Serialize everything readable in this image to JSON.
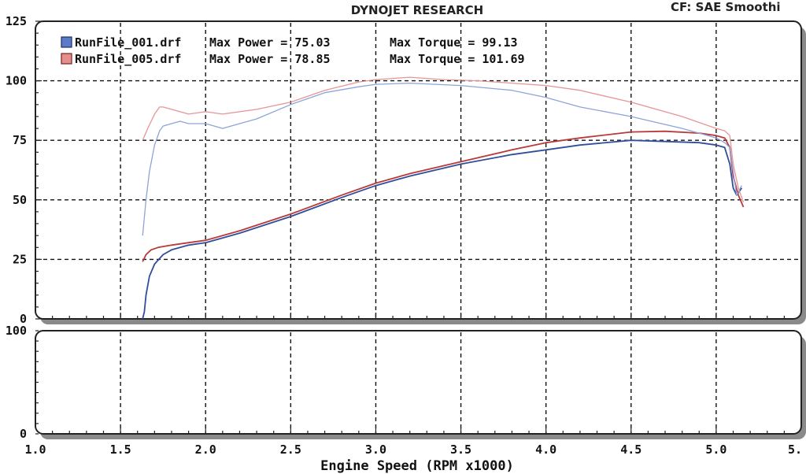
{
  "header": {
    "title": "DYNOJET RESEARCH",
    "cf_text": "CF: SAE  Smoothi"
  },
  "chart_data": [
    {
      "type": "line",
      "xlabel": "Engine Speed (RPM x1000)",
      "xlim": [
        1.0,
        5.5
      ],
      "ylim": [
        0,
        125
      ],
      "x_ticks": [
        "1.0",
        "1.5",
        "2.0",
        "2.5",
        "3.0",
        "3.5",
        "4.0",
        "4.5",
        "5.0",
        "5."
      ],
      "y_ticks": [
        "0",
        "25",
        "50",
        "75",
        "100",
        "125"
      ],
      "grid": true,
      "legend_position": "top-left",
      "legend": [
        {
          "file": "RunFile_001.drf",
          "power_text": "Max Power = 75.03",
          "torque_text": "Max Torque = 99.13",
          "color": "#3b5aa8"
        },
        {
          "file": "RunFile_005.drf",
          "power_text": "Max Power = 78.85",
          "torque_text": "Max Torque = 101.69",
          "color": "#c84848"
        }
      ],
      "series": [
        {
          "kind": "power",
          "color": "#2f4f9a",
          "x": [
            1.63,
            1.64,
            1.65,
            1.67,
            1.7,
            1.75,
            1.8,
            1.9,
            2.0,
            2.2,
            2.5,
            2.8,
            3.0,
            3.2,
            3.5,
            3.8,
            4.0,
            4.2,
            4.5,
            4.7,
            4.9,
            5.0,
            5.05,
            5.08,
            5.1,
            5.12,
            5.15
          ],
          "y": [
            0,
            3,
            10,
            18,
            23,
            27,
            29,
            31,
            32,
            36,
            43,
            51,
            56,
            60,
            65,
            69,
            71,
            73,
            75,
            74.5,
            74,
            73,
            72,
            65,
            55,
            52,
            55
          ]
        },
        {
          "kind": "power",
          "color": "#b83a3a",
          "x": [
            1.63,
            1.65,
            1.68,
            1.72,
            1.8,
            1.9,
            2.0,
            2.2,
            2.5,
            2.8,
            3.0,
            3.2,
            3.5,
            3.8,
            4.0,
            4.2,
            4.5,
            4.7,
            4.9,
            5.0,
            5.05,
            5.08,
            5.1,
            5.13,
            5.16
          ],
          "y": [
            24,
            27,
            29,
            30,
            31,
            32,
            33,
            37,
            44,
            52,
            57,
            61,
            66,
            71,
            74,
            76,
            78.5,
            78.8,
            78,
            77,
            76,
            72,
            60,
            52,
            47
          ]
        },
        {
          "kind": "torque",
          "color": "#8ea4d8",
          "x": [
            1.63,
            1.65,
            1.67,
            1.7,
            1.73,
            1.75,
            1.8,
            1.85,
            1.9,
            2.0,
            2.1,
            2.2,
            2.3,
            2.5,
            2.7,
            2.9,
            3.0,
            3.2,
            3.5,
            3.8,
            4.0,
            4.2,
            4.5,
            4.8,
            5.0,
            5.05,
            5.08,
            5.1,
            5.12,
            5.15
          ],
          "y": [
            35,
            50,
            62,
            73,
            79,
            81,
            82,
            83,
            82,
            82,
            80,
            82,
            84,
            90,
            95,
            97.5,
            98.5,
            99,
            98,
            96,
            93,
            89,
            85,
            80,
            76,
            74,
            72,
            62,
            52,
            56
          ]
        },
        {
          "kind": "torque",
          "color": "#e59595",
          "x": [
            1.63,
            1.66,
            1.7,
            1.73,
            1.75,
            1.8,
            1.85,
            1.9,
            2.0,
            2.1,
            2.2,
            2.3,
            2.5,
            2.7,
            2.9,
            3.0,
            3.2,
            3.4,
            3.6,
            3.8,
            4.0,
            4.2,
            4.5,
            4.8,
            5.0,
            5.05,
            5.08,
            5.1,
            5.13,
            5.16
          ],
          "y": [
            75,
            80,
            86,
            89,
            89,
            88,
            87,
            86,
            87,
            86,
            87,
            88,
            91,
            96,
            99.5,
            100.5,
            101.5,
            100.5,
            100,
            99,
            98,
            96,
            91,
            85,
            80,
            79,
            77,
            65,
            55,
            49
          ]
        }
      ]
    },
    {
      "type": "line",
      "ylim": [
        0,
        100
      ],
      "y_ticks": [
        "0",
        "100"
      ],
      "xlim": [
        1.0,
        5.5
      ],
      "grid": true,
      "series": []
    }
  ]
}
